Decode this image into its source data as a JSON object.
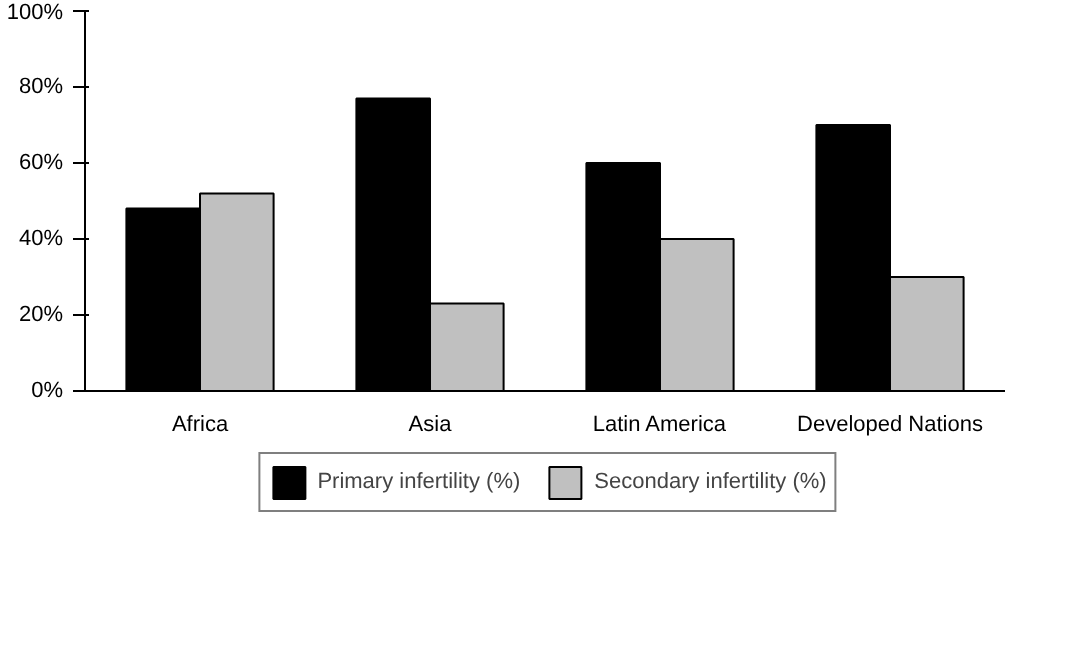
{
  "chart_data": {
    "type": "bar",
    "categories": [
      "Africa",
      "Asia",
      "Latin America",
      "Developed Nations"
    ],
    "series": [
      {
        "name": "Primary infertility (%)",
        "color": "#000000",
        "values": [
          48,
          77,
          60,
          70
        ]
      },
      {
        "name": "Secondary infertility (%)",
        "color": "#c0c0c0",
        "values": [
          52,
          23,
          40,
          30
        ]
      }
    ],
    "ylim": [
      0,
      100
    ],
    "yticks": [
      {
        "value": 0,
        "label": "0%"
      },
      {
        "value": 20,
        "label": "20%"
      },
      {
        "value": 40,
        "label": "40%"
      },
      {
        "value": 60,
        "label": "60%"
      },
      {
        "value": 80,
        "label": "80%"
      },
      {
        "value": 100,
        "label": "100%"
      }
    ],
    "grid": false,
    "legend": "bottom"
  }
}
